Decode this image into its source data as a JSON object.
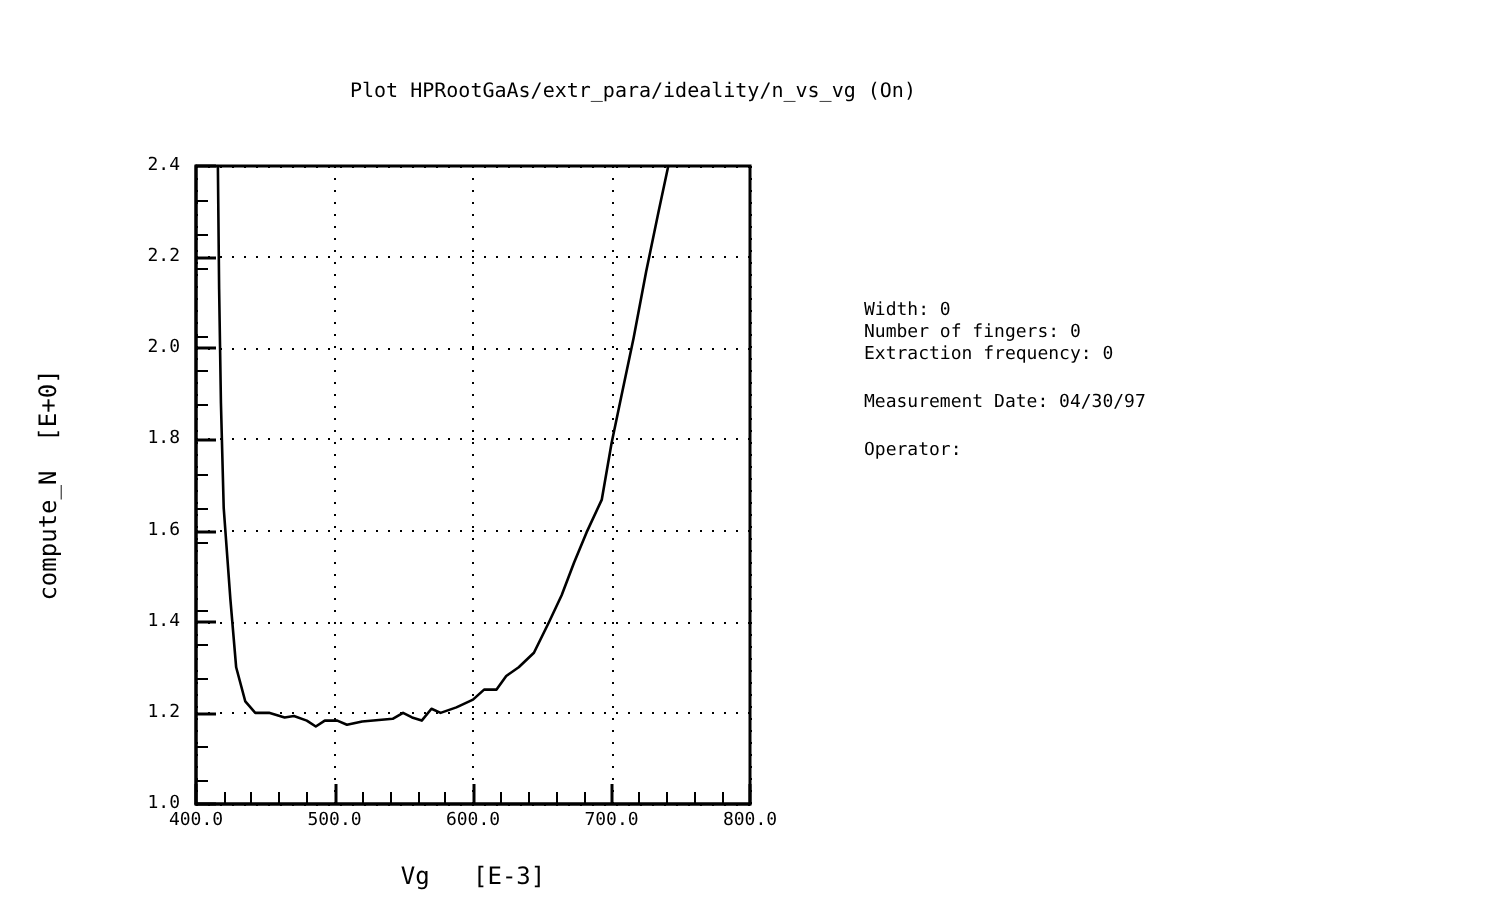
{
  "chart_data": {
    "type": "line",
    "title": "Plot HPRootGaAs/extr_para/ideality/n_vs_vg (On)",
    "xlabel": "Vg   [E-3]",
    "ylabel": "compute_N  [E+0]",
    "annotations": [
      "Width: 0\nNumber of fingers: 0\nExtraction frequency: 0",
      "Measurement Date: 04/30/97",
      "Operator:"
    ],
    "series": [
      {
        "color": "#000000",
        "x": [
          415.8,
          416.7,
          418,
          420,
          424.8,
          429,
          435.6,
          442.8,
          452.7,
          464,
          470.7,
          480,
          486.5,
          493,
          502,
          509,
          520,
          542,
          549.5,
          556,
          563,
          570,
          576.6,
          588,
          600,
          608,
          617,
          624,
          633,
          644,
          655,
          664,
          673,
          682,
          693,
          700,
          707,
          716,
          725,
          734,
          741
        ],
        "values": [
          2.4,
          2.13,
          1.88,
          1.65,
          1.45,
          1.3,
          1.225,
          1.2,
          1.2,
          1.19,
          1.193,
          1.183,
          1.17,
          1.183,
          1.183,
          1.174,
          1.181,
          1.187,
          1.2,
          1.19,
          1.183,
          1.209,
          1.2,
          1.212,
          1.229,
          1.251,
          1.251,
          1.281,
          1.3,
          1.332,
          1.4,
          1.458,
          1.53,
          1.596,
          1.668,
          1.791,
          1.893,
          2.023,
          2.168,
          2.3,
          2.4
        ]
      }
    ],
    "xlim": [
      400,
      800
    ],
    "xticks": [
      {
        "value": 400,
        "label": "400.0"
      },
      {
        "value": 500,
        "label": "500.0"
      },
      {
        "value": 600,
        "label": "600.0"
      },
      {
        "value": 700,
        "label": "700.0"
      },
      {
        "value": 800,
        "label": "800.0"
      }
    ],
    "ylim": [
      1.0,
      2.4
    ],
    "yticks": [
      {
        "value": 1.0,
        "label": "1.0"
      },
      {
        "value": 1.2,
        "label": "1.2"
      },
      {
        "value": 1.4,
        "label": "1.4"
      },
      {
        "value": 1.6,
        "label": "1.6"
      },
      {
        "value": 1.8,
        "label": "1.8"
      },
      {
        "value": 2.0,
        "label": "2.0"
      },
      {
        "value": 2.2,
        "label": "2.2"
      },
      {
        "value": 2.4,
        "label": "2.4"
      }
    ],
    "grid": true,
    "marker": "none",
    "line_style": "solid"
  }
}
